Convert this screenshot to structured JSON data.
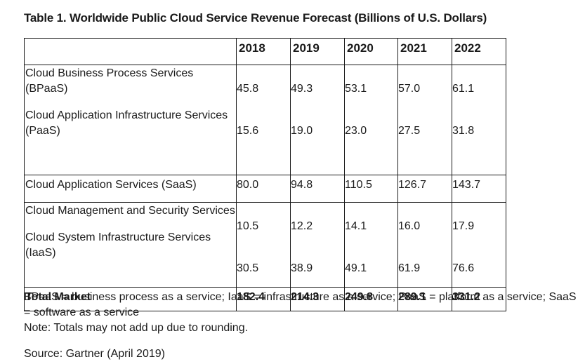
{
  "title": "Table 1. Worldwide Public Cloud Service Revenue Forecast (Billions of U.S. Dollars)",
  "table": {
    "years": [
      "2018",
      "2019",
      "2020",
      "2021",
      "2022"
    ],
    "rows": [
      {
        "label": "Cloud Business Process Services (BPaaS)",
        "values": [
          "45.8",
          "49.3",
          "53.1",
          "57.0",
          "61.1"
        ]
      },
      {
        "label": "Cloud Application Infrastructure Services (PaaS)",
        "values": [
          "15.6",
          "19.0",
          "23.0",
          "27.5",
          "31.8"
        ]
      },
      {
        "label": "Cloud Application Services (SaaS)",
        "values": [
          "80.0",
          "94.8",
          "110.5",
          "126.7",
          "143.7"
        ]
      },
      {
        "label": "Cloud Management and Security Services",
        "values": [
          "10.5",
          "12.2",
          "14.1",
          "16.0",
          "17.9"
        ]
      },
      {
        "label": "Cloud System Infrastructure Services (IaaS)",
        "values": [
          "30.5",
          "38.9",
          "49.1",
          "61.9",
          "76.6"
        ]
      }
    ],
    "total": {
      "label": "Total Market",
      "values": [
        "182.4",
        "214.3",
        "249.8",
        "289.1",
        "331.2"
      ]
    }
  },
  "notes": {
    "abbreviations": "BPaaS = business process as a service; IaaS = infrastructure as a service; PaaS = platform as a service; SaaS = software as a service",
    "rounding": "Note: Totals may not add up due to rounding.",
    "source": "Source: Gartner (April 2019)"
  }
}
